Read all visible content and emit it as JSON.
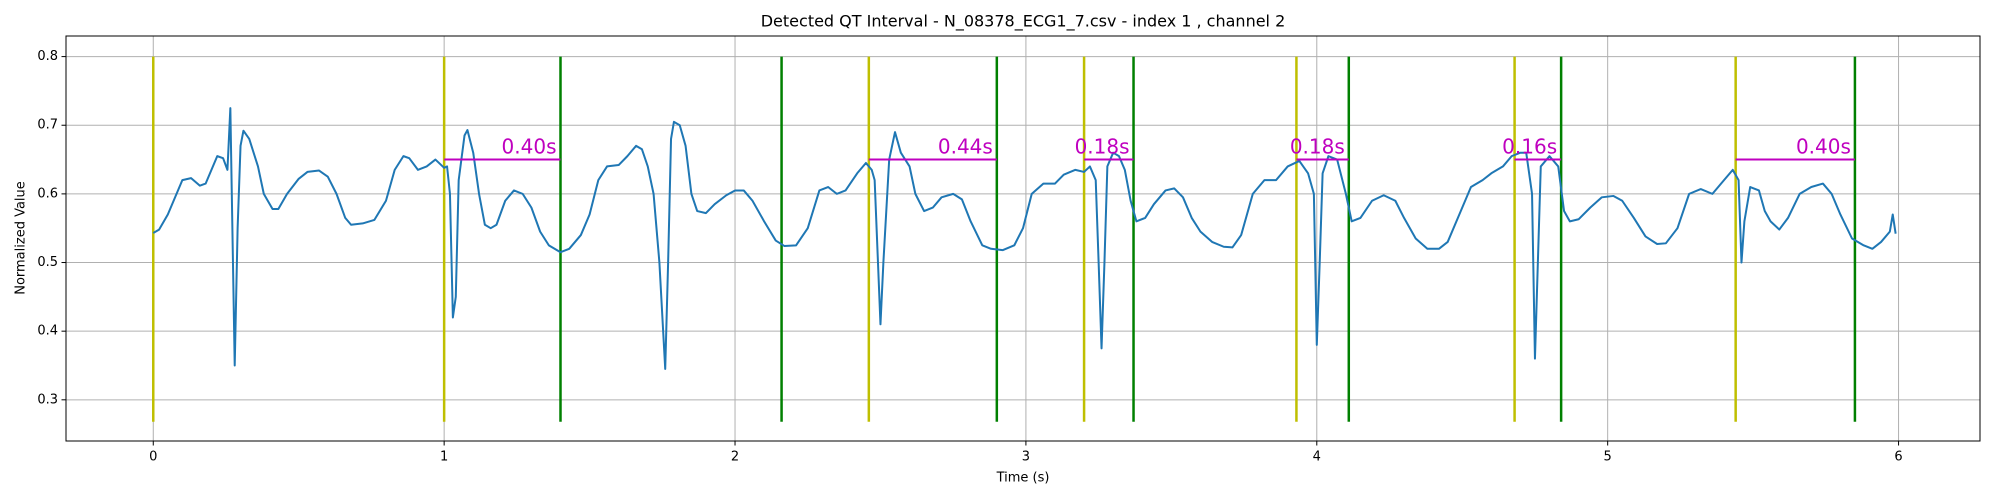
{
  "chart_data": {
    "type": "line",
    "title": "Detected QT Interval - N_08378_ECG1_7.csv - index 1 , channel 2",
    "xlabel": "Time (s)",
    "ylabel": "Normalized Value",
    "xlim": [
      -0.3,
      6.28
    ],
    "ylim": [
      0.24,
      0.83
    ],
    "xticks": [
      0,
      1,
      2,
      3,
      4,
      5,
      6
    ],
    "yticks": [
      0.3,
      0.4,
      0.5,
      0.6,
      0.7,
      0.8
    ],
    "grid": true,
    "series": [
      {
        "color": "#1f77b4",
        "x": [
          0,
          0.02,
          0.05,
          0.08,
          0.1,
          0.13,
          0.16,
          0.18,
          0.2,
          0.22,
          0.24,
          0.255,
          0.265,
          0.27,
          0.28,
          0.29,
          0.3,
          0.31,
          0.33,
          0.36,
          0.38,
          0.41,
          0.43,
          0.46,
          0.5,
          0.53,
          0.57,
          0.6,
          0.63,
          0.66,
          0.68,
          0.72,
          0.76,
          0.8,
          0.83,
          0.86,
          0.88,
          0.91,
          0.94,
          0.97,
          1.0,
          1.01,
          1.02,
          1.03,
          1.04,
          1.05,
          1.07,
          1.08,
          1.1,
          1.12,
          1.14,
          1.16,
          1.18,
          1.21,
          1.24,
          1.27,
          1.3,
          1.33,
          1.36,
          1.4,
          1.43,
          1.47,
          1.5,
          1.53,
          1.56,
          1.6,
          1.63,
          1.66,
          1.68,
          1.7,
          1.72,
          1.74,
          1.76,
          1.77,
          1.78,
          1.79,
          1.81,
          1.83,
          1.85,
          1.87,
          1.9,
          1.93,
          1.97,
          2.0,
          2.03,
          2.06,
          2.1,
          2.14,
          2.17,
          2.21,
          2.25,
          2.29,
          2.32,
          2.35,
          2.38,
          2.42,
          2.45,
          2.47,
          2.48,
          2.5,
          2.51,
          2.53,
          2.55,
          2.57,
          2.6,
          2.62,
          2.65,
          2.68,
          2.71,
          2.75,
          2.78,
          2.81,
          2.85,
          2.88,
          2.92,
          2.96,
          2.99,
          3.02,
          3.06,
          3.1,
          3.13,
          3.17,
          3.2,
          3.22,
          3.24,
          3.25,
          3.26,
          3.27,
          3.28,
          3.3,
          3.32,
          3.34,
          3.36,
          3.38,
          3.41,
          3.44,
          3.48,
          3.51,
          3.54,
          3.57,
          3.6,
          3.64,
          3.68,
          3.71,
          3.74,
          3.78,
          3.82,
          3.86,
          3.9,
          3.94,
          3.97,
          3.99,
          4.0,
          4.01,
          4.02,
          4.04,
          4.07,
          4.1,
          4.12,
          4.15,
          4.19,
          4.23,
          4.27,
          4.3,
          4.34,
          4.38,
          4.42,
          4.45,
          4.49,
          4.53,
          4.57,
          4.6,
          4.64,
          4.67,
          4.7,
          4.72,
          4.74,
          4.75,
          4.76,
          4.77,
          4.8,
          4.83,
          4.85,
          4.87,
          4.9,
          4.94,
          4.98,
          5.02,
          5.05,
          5.09,
          5.13,
          5.17,
          5.2,
          5.24,
          5.28,
          5.32,
          5.36,
          5.4,
          5.43,
          5.45,
          5.46,
          5.47,
          5.49,
          5.52,
          5.54,
          5.56,
          5.59,
          5.62,
          5.66,
          5.7,
          5.74,
          5.77,
          5.8,
          5.84,
          5.88,
          5.91,
          5.94,
          5.97,
          5.98,
          5.99
        ],
        "values": [
          0.543,
          0.548,
          0.57,
          0.6,
          0.62,
          0.623,
          0.612,
          0.615,
          0.635,
          0.655,
          0.652,
          0.635,
          0.725,
          0.6,
          0.35,
          0.55,
          0.67,
          0.692,
          0.68,
          0.64,
          0.6,
          0.578,
          0.578,
          0.6,
          0.622,
          0.632,
          0.634,
          0.625,
          0.6,
          0.565,
          0.555,
          0.557,
          0.562,
          0.59,
          0.635,
          0.655,
          0.652,
          0.635,
          0.64,
          0.65,
          0.638,
          0.64,
          0.6,
          0.42,
          0.45,
          0.62,
          0.685,
          0.693,
          0.66,
          0.6,
          0.555,
          0.55,
          0.555,
          0.59,
          0.605,
          0.6,
          0.58,
          0.545,
          0.525,
          0.515,
          0.52,
          0.54,
          0.57,
          0.62,
          0.64,
          0.642,
          0.655,
          0.67,
          0.665,
          0.64,
          0.6,
          0.5,
          0.345,
          0.5,
          0.68,
          0.705,
          0.7,
          0.67,
          0.6,
          0.575,
          0.572,
          0.585,
          0.598,
          0.605,
          0.605,
          0.59,
          0.56,
          0.532,
          0.524,
          0.525,
          0.55,
          0.605,
          0.61,
          0.6,
          0.605,
          0.63,
          0.645,
          0.635,
          0.62,
          0.41,
          0.5,
          0.65,
          0.69,
          0.66,
          0.64,
          0.6,
          0.575,
          0.58,
          0.595,
          0.6,
          0.592,
          0.56,
          0.525,
          0.52,
          0.518,
          0.525,
          0.55,
          0.6,
          0.615,
          0.615,
          0.628,
          0.635,
          0.632,
          0.64,
          0.62,
          0.5,
          0.375,
          0.5,
          0.64,
          0.66,
          0.655,
          0.635,
          0.59,
          0.56,
          0.565,
          0.585,
          0.605,
          0.608,
          0.595,
          0.565,
          0.545,
          0.53,
          0.523,
          0.522,
          0.54,
          0.6,
          0.62,
          0.62,
          0.64,
          0.648,
          0.63,
          0.6,
          0.38,
          0.5,
          0.63,
          0.655,
          0.65,
          0.6,
          0.56,
          0.565,
          0.59,
          0.598,
          0.59,
          0.565,
          0.535,
          0.52,
          0.52,
          0.53,
          0.57,
          0.61,
          0.62,
          0.63,
          0.64,
          0.655,
          0.66,
          0.66,
          0.6,
          0.36,
          0.5,
          0.64,
          0.655,
          0.64,
          0.575,
          0.56,
          0.563,
          0.58,
          0.595,
          0.597,
          0.59,
          0.565,
          0.538,
          0.527,
          0.528,
          0.55,
          0.6,
          0.607,
          0.6,
          0.62,
          0.635,
          0.62,
          0.5,
          0.56,
          0.61,
          0.605,
          0.575,
          0.56,
          0.548,
          0.565,
          0.6,
          0.61,
          0.615,
          0.6,
          0.57,
          0.535,
          0.525,
          0.52,
          0.53,
          0.545,
          0.57,
          0.542
        ]
      }
    ],
    "onsets": {
      "color": "#bfbf00",
      "x": [
        0,
        1.0,
        2.46,
        3.2,
        3.93,
        4.68,
        5.44
      ]
    },
    "offsets": {
      "color": "#008000",
      "x": [
        1.4,
        2.16,
        2.9,
        3.37,
        4.11,
        4.84,
        5.85
      ]
    },
    "marker_span": [
      0.268,
      0.8
    ],
    "interval_color": "#bf00bf",
    "intervals": [
      {
        "start": 1.0,
        "end": 1.4,
        "y": 0.65,
        "label": "0.40s"
      },
      {
        "start": 2.46,
        "end": 2.9,
        "y": 0.65,
        "label": "0.44s"
      },
      {
        "start": 3.2,
        "end": 3.37,
        "y": 0.65,
        "label": "0.18s"
      },
      {
        "start": 3.93,
        "end": 4.11,
        "y": 0.65,
        "label": "0.18s"
      },
      {
        "start": 4.68,
        "end": 4.84,
        "y": 0.65,
        "label": "0.16s"
      },
      {
        "start": 5.44,
        "end": 5.85,
        "y": 0.65,
        "label": "0.40s"
      }
    ]
  }
}
